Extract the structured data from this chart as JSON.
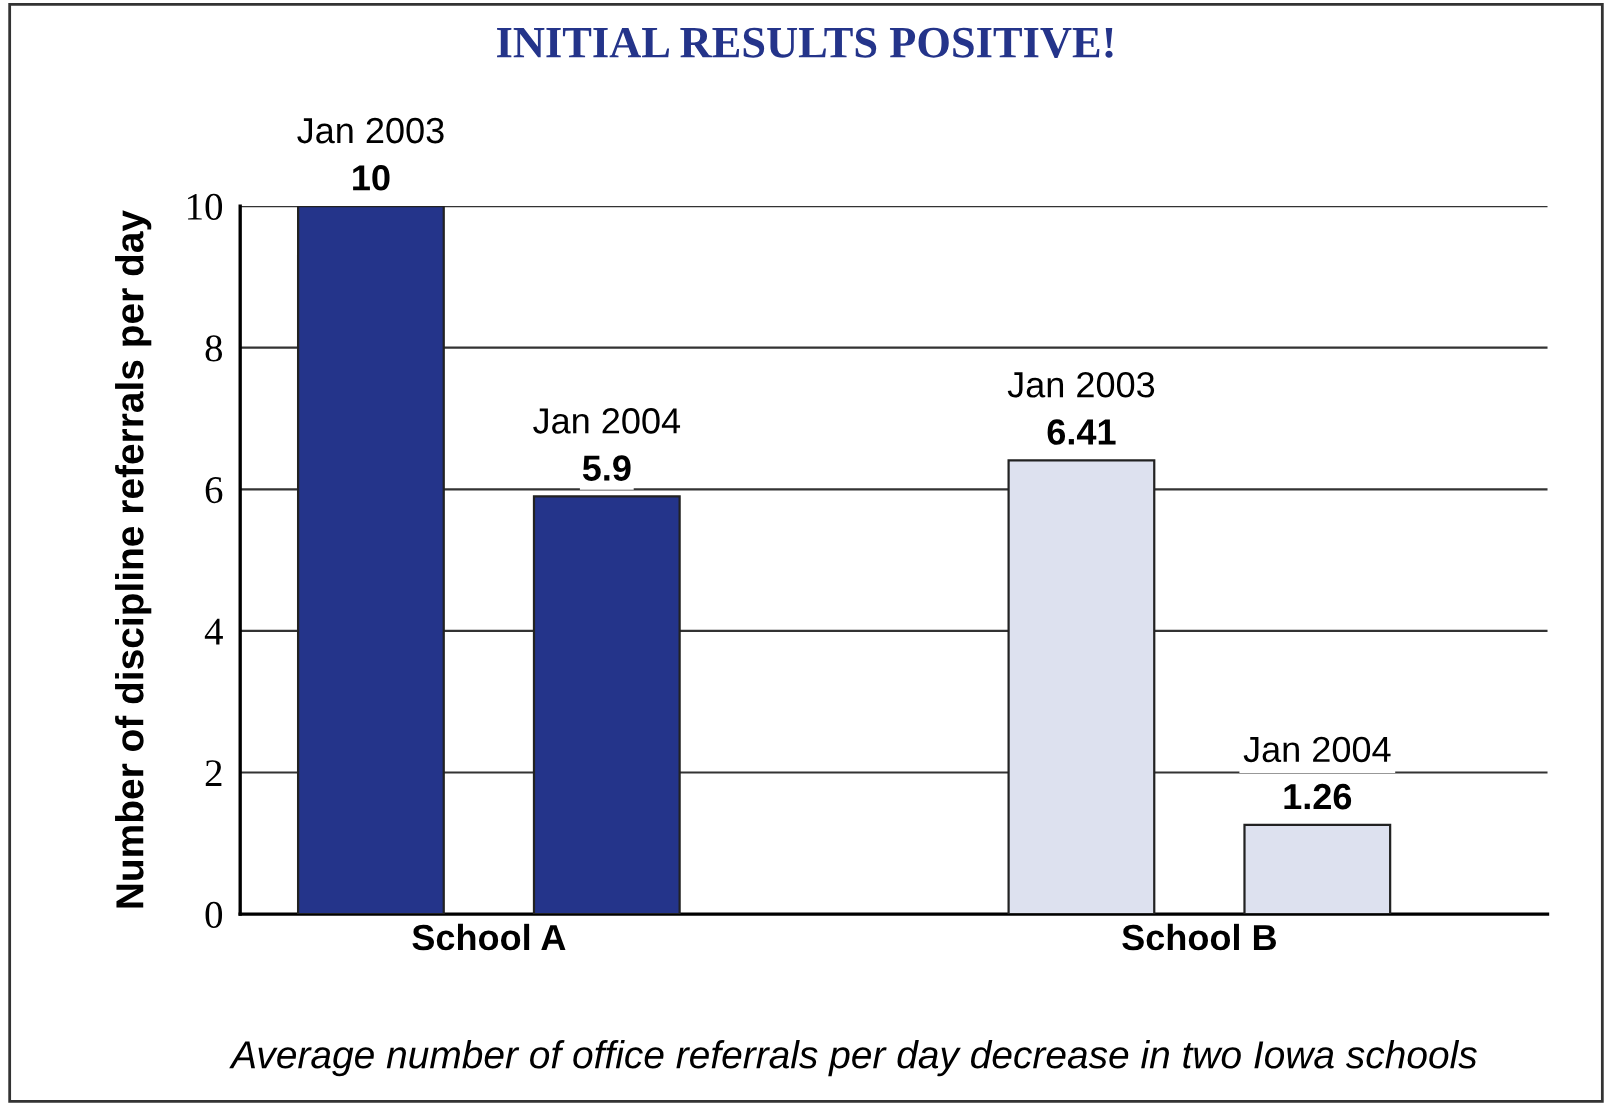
{
  "chart_data": {
    "type": "bar",
    "title": "INITIAL RESULTS POSITIVE!",
    "ylabel": "Number of discipline referrals per day",
    "categories": [
      "School A",
      "School B"
    ],
    "series": [
      {
        "name": "Jan 2003",
        "values": [
          10,
          6.41
        ],
        "colors": [
          "#24348a",
          "#dde1ef"
        ]
      },
      {
        "name": "Jan 2004",
        "values": [
          5.9,
          1.26
        ],
        "colors": [
          "#24348a",
          "#dde1ef"
        ]
      }
    ],
    "ylim": [
      0,
      10
    ],
    "yticks": [
      0,
      2,
      4,
      6,
      8,
      10
    ],
    "grid": "y",
    "data_labels": true,
    "legend": false,
    "annotations": [
      "Average number of office referrals per day decrease in two Iowa schools"
    ]
  }
}
